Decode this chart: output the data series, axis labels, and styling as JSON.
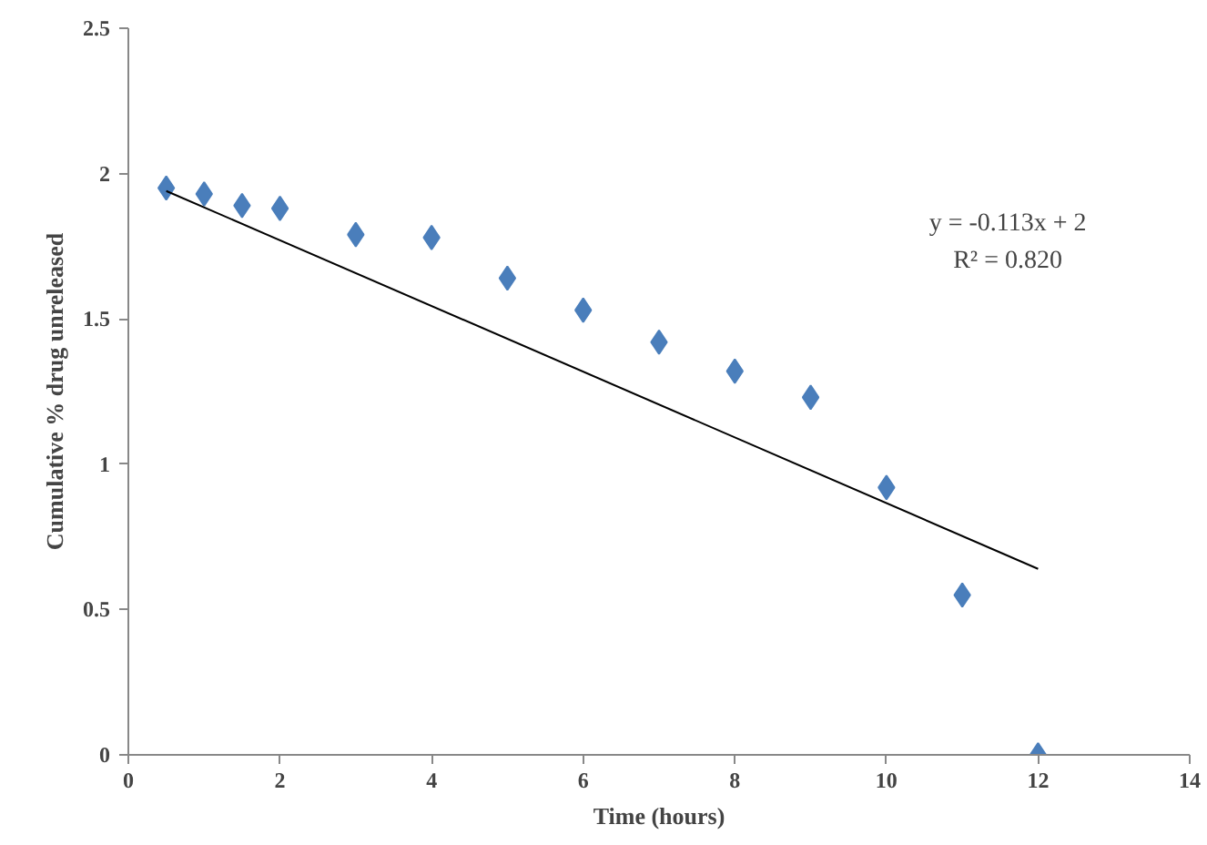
{
  "chart_data": {
    "type": "scatter",
    "xlabel": "Time (hours)",
    "ylabel": "Cumulative % drug unreleased",
    "xlim": [
      0,
      14
    ],
    "xticks": [
      0,
      2,
      4,
      6,
      8,
      10,
      12,
      14
    ],
    "ylim": [
      0,
      2.5
    ],
    "yticks": [
      0,
      0.5,
      1,
      1.5,
      2,
      2.5
    ],
    "grid": false,
    "series": [
      {
        "type": "scatter",
        "marker": "diamond",
        "color": "#4a7ebb",
        "x": [
          0.5,
          1,
          1.5,
          2,
          3,
          4,
          5,
          6,
          7,
          8,
          9,
          10,
          11,
          12
        ],
        "values": [
          1.95,
          1.93,
          1.89,
          1.88,
          1.79,
          1.78,
          1.64,
          1.53,
          1.42,
          1.32,
          1.23,
          0.92,
          0.55,
          0.0
        ]
      },
      {
        "type": "line",
        "color": "#000000",
        "marker": "none",
        "x": [
          0.5,
          12
        ],
        "values": [
          1.94,
          0.64
        ]
      }
    ],
    "annotations": [
      "y = -0.113x + 2",
      "R² = 0.820"
    ]
  }
}
